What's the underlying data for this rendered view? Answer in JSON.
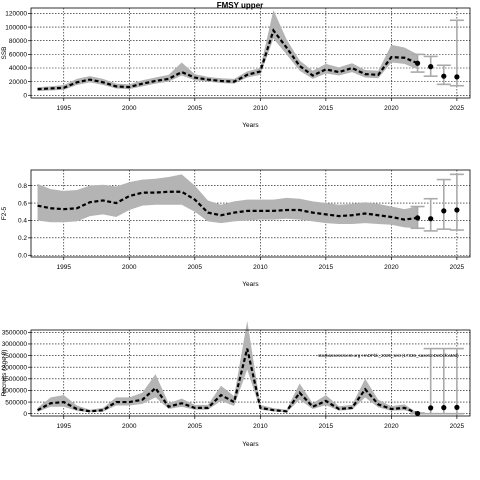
{
  "figure": {
    "title": "FMSY upper",
    "annotation": "stockassessment.org HADFbk_2025_test (17336_saseSnDeDcfcaMd)"
  },
  "chart_data": [
    {
      "type": "line",
      "panel": "ssb",
      "ylabel": "SSB",
      "xlabel": "Years",
      "xlim": [
        1992.5,
        2026
      ],
      "ylim": [
        -4000,
        128000
      ],
      "xticks": [
        1995,
        2000,
        2005,
        2010,
        2015,
        2020,
        2025
      ],
      "yticks": [
        0,
        20000,
        40000,
        60000,
        80000,
        100000,
        120000
      ],
      "ytick_labels": [
        "0",
        "20000",
        "40000",
        "60000",
        "80000",
        "100000",
        "120000"
      ],
      "grid": true,
      "x": [
        1993,
        1994,
        1995,
        1996,
        1997,
        1998,
        1999,
        2000,
        2001,
        2002,
        2003,
        2004,
        2005,
        2006,
        2007,
        2008,
        2009,
        2010,
        2011,
        2012,
        2013,
        2014,
        2015,
        2016,
        2017,
        2018,
        2019,
        2020,
        2021,
        2022
      ],
      "values": [
        9000,
        10000,
        11000,
        19000,
        23000,
        19000,
        13000,
        12000,
        17000,
        21000,
        24000,
        34000,
        26000,
        23000,
        21000,
        20000,
        30000,
        35000,
        95000,
        70000,
        43000,
        29000,
        38000,
        34000,
        40000,
        31000,
        30000,
        56000,
        55000,
        47000
      ],
      "lower": [
        6000,
        7000,
        8000,
        15000,
        19000,
        15000,
        10000,
        9000,
        13000,
        17000,
        20000,
        29000,
        22000,
        20000,
        18000,
        17000,
        26000,
        30000,
        83000,
        60000,
        36000,
        24000,
        32000,
        29000,
        34000,
        26000,
        25000,
        48000,
        46000,
        38000
      ],
      "upper": [
        12000,
        13000,
        15000,
        24000,
        28000,
        24000,
        17000,
        16000,
        22000,
        26000,
        30000,
        48000,
        31000,
        27000,
        25000,
        24000,
        35000,
        40000,
        125000,
        82000,
        51000,
        36000,
        46000,
        41000,
        47000,
        37000,
        36000,
        74000,
        70000,
        60000
      ],
      "forecast": {
        "x": [
          2022,
          2023,
          2024,
          2025
        ],
        "values": [
          47000,
          42000,
          28000,
          27000
        ],
        "lower": [
          34000,
          28000,
          16000,
          14000
        ],
        "upper": [
          60000,
          57000,
          44000,
          110000
        ]
      }
    },
    {
      "type": "line",
      "panel": "f",
      "ylabel": "F2-5",
      "xlabel": "Years",
      "xlim": [
        1992.5,
        2026
      ],
      "ylim": [
        -0.02,
        0.98
      ],
      "xticks": [
        1995,
        2000,
        2005,
        2010,
        2015,
        2020,
        2025
      ],
      "yticks": [
        0.0,
        0.2,
        0.4,
        0.6,
        0.8
      ],
      "ytick_labels": [
        "0.0",
        "0.2",
        "0.4",
        "0.6",
        "0.8"
      ],
      "grid": true,
      "x": [
        1993,
        1994,
        1995,
        1996,
        1997,
        1998,
        1999,
        2000,
        2001,
        2002,
        2003,
        2004,
        2005,
        2006,
        2007,
        2008,
        2009,
        2010,
        2011,
        2012,
        2013,
        2014,
        2015,
        2016,
        2017,
        2018,
        2019,
        2020,
        2021,
        2022
      ],
      "values": [
        0.57,
        0.54,
        0.53,
        0.54,
        0.61,
        0.63,
        0.6,
        0.68,
        0.72,
        0.72,
        0.73,
        0.73,
        0.64,
        0.49,
        0.46,
        0.49,
        0.51,
        0.51,
        0.51,
        0.52,
        0.52,
        0.49,
        0.47,
        0.45,
        0.46,
        0.48,
        0.46,
        0.44,
        0.41,
        0.43
      ],
      "lower": [
        0.4,
        0.38,
        0.38,
        0.39,
        0.45,
        0.47,
        0.44,
        0.52,
        0.57,
        0.58,
        0.58,
        0.58,
        0.5,
        0.39,
        0.37,
        0.39,
        0.4,
        0.41,
        0.41,
        0.42,
        0.41,
        0.39,
        0.37,
        0.36,
        0.36,
        0.37,
        0.36,
        0.35,
        0.32,
        0.31
      ],
      "upper": [
        0.82,
        0.76,
        0.74,
        0.75,
        0.8,
        0.81,
        0.79,
        0.84,
        0.87,
        0.88,
        0.9,
        0.93,
        0.8,
        0.63,
        0.58,
        0.62,
        0.64,
        0.64,
        0.64,
        0.66,
        0.65,
        0.62,
        0.6,
        0.58,
        0.59,
        0.61,
        0.59,
        0.56,
        0.53,
        0.56
      ],
      "forecast": {
        "x": [
          2022,
          2023,
          2024,
          2025
        ],
        "values": [
          0.43,
          0.42,
          0.51,
          0.52
        ],
        "lower": [
          0.31,
          0.28,
          0.3,
          0.29
        ],
        "upper": [
          0.56,
          0.65,
          0.87,
          0.93
        ]
      }
    },
    {
      "type": "line",
      "panel": "recruits",
      "ylabel": "Recruits (Age 0)",
      "xlabel": "Years",
      "xlim": [
        1992.5,
        2026
      ],
      "ylim": [
        -100000,
        3600000
      ],
      "xticks": [
        1995,
        2000,
        2005,
        2010,
        2015,
        2020,
        2025
      ],
      "yticks": [
        0,
        500000,
        1000000,
        1500000,
        2000000,
        2500000,
        3000000,
        3500000
      ],
      "ytick_labels": [
        "0",
        "500000",
        "1000000",
        "1500000",
        "2000000",
        "2500000",
        "3000000",
        "3500000"
      ],
      "grid": true,
      "x": [
        1993,
        1994,
        1995,
        1996,
        1997,
        1998,
        1999,
        2000,
        2001,
        2002,
        2003,
        2004,
        2005,
        2006,
        2007,
        2008,
        2009,
        2010,
        2011,
        2012,
        2013,
        2014,
        2015,
        2016,
        2017,
        2018,
        2019,
        2020,
        2021,
        2022
      ],
      "values": [
        150000,
        450000,
        500000,
        200000,
        100000,
        150000,
        500000,
        500000,
        600000,
        1100000,
        300000,
        450000,
        250000,
        250000,
        800000,
        500000,
        2800000,
        250000,
        150000,
        100000,
        900000,
        300000,
        550000,
        200000,
        250000,
        1050000,
        400000,
        200000,
        250000,
        10000
      ],
      "lower": [
        80000,
        300000,
        300000,
        120000,
        60000,
        90000,
        350000,
        350000,
        420000,
        700000,
        200000,
        300000,
        170000,
        170000,
        550000,
        330000,
        1900000,
        170000,
        100000,
        60000,
        600000,
        200000,
        370000,
        130000,
        170000,
        700000,
        270000,
        130000,
        150000,
        0
      ],
      "upper": [
        250000,
        700000,
        800000,
        350000,
        170000,
        250000,
        700000,
        700000,
        900000,
        1700000,
        450000,
        650000,
        380000,
        380000,
        1200000,
        750000,
        4000000,
        380000,
        240000,
        170000,
        1300000,
        450000,
        800000,
        320000,
        380000,
        1500000,
        600000,
        320000,
        400000,
        30000
      ],
      "forecast": {
        "x": [
          2022,
          2023,
          2024,
          2025
        ],
        "values": [
          10000,
          250000,
          260000,
          270000
        ],
        "lower": [
          0,
          0,
          0,
          0
        ],
        "upper": [
          30000,
          2800000,
          2800000,
          2800000
        ]
      }
    }
  ]
}
